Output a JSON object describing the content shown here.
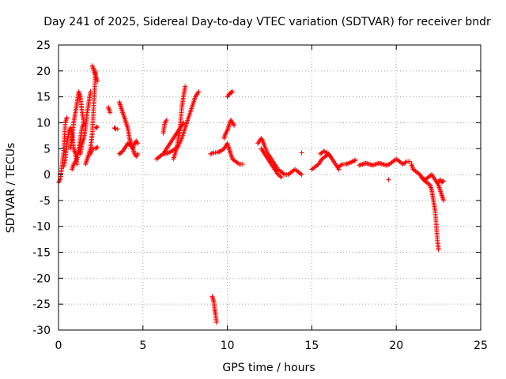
{
  "chart_data": {
    "type": "scatter",
    "title": "Day 241 of 2025, Sidereal Day-to-day VTEC variation (SDTVAR) for receiver bndr",
    "xlabel": "GPS time / hours",
    "ylabel": "SDTVAR / TECUs",
    "xlim": [
      0,
      25
    ],
    "ylim": [
      -30,
      25
    ],
    "xticks": [
      0,
      5,
      10,
      15,
      20,
      25
    ],
    "yticks": [
      -30,
      -25,
      -20,
      -15,
      -10,
      -5,
      0,
      5,
      10,
      15,
      20,
      25
    ],
    "xtick_labels": [
      "0",
      "5",
      "10",
      "15",
      "20",
      "25"
    ],
    "ytick_labels": [
      "-30",
      "-25",
      "-20",
      "-15",
      "-10",
      "-5",
      "0",
      "5",
      "10",
      "15",
      "20",
      "25"
    ],
    "grid": true,
    "marker": "+",
    "marker_color": "#ff0000",
    "series": [
      {
        "name": "SDTVAR",
        "segments": [
          [
            [
              0.0,
              -1.5
            ],
            [
              0.1,
              -1
            ],
            [
              0.2,
              1.5
            ],
            [
              0.3,
              4
            ],
            [
              0.35,
              7
            ],
            [
              0.4,
              10
            ],
            [
              0.5,
              11
            ]
          ],
          [
            [
              0.3,
              1.5
            ],
            [
              0.4,
              3
            ],
            [
              0.5,
              6
            ],
            [
              0.6,
              8
            ],
            [
              0.7,
              9
            ],
            [
              0.8,
              8
            ],
            [
              0.9,
              5
            ],
            [
              1.0,
              4
            ],
            [
              1.1,
              2
            ]
          ],
          [
            [
              0.7,
              5
            ],
            [
              0.8,
              7
            ],
            [
              0.9,
              10
            ],
            [
              1.0,
              12
            ],
            [
              1.1,
              14
            ],
            [
              1.2,
              16
            ],
            [
              1.3,
              15
            ],
            [
              1.4,
              12
            ],
            [
              1.5,
              10
            ]
          ],
          [
            [
              0.8,
              1
            ],
            [
              0.9,
              2
            ],
            [
              1.0,
              2.5
            ],
            [
              1.1,
              3
            ],
            [
              1.2,
              5
            ],
            [
              1.3,
              7
            ],
            [
              1.4,
              9
            ],
            [
              1.5,
              10
            ]
          ],
          [
            [
              1.3,
              4
            ],
            [
              1.4,
              6
            ],
            [
              1.5,
              7
            ],
            [
              1.6,
              9
            ],
            [
              1.7,
              12
            ],
            [
              1.8,
              14
            ],
            [
              1.9,
              16
            ]
          ],
          [
            [
              1.6,
              2
            ],
            [
              1.7,
              3
            ],
            [
              1.8,
              4
            ],
            [
              1.9,
              5
            ],
            [
              2.0,
              8
            ],
            [
              2.05,
              11
            ],
            [
              2.1,
              14
            ],
            [
              2.15,
              17
            ],
            [
              2.2,
              20
            ]
          ],
          [
            [
              2.0,
              21
            ],
            [
              2.1,
              20
            ],
            [
              2.2,
              19
            ],
            [
              2.3,
              18
            ]
          ],
          [
            [
              1.9,
              4
            ],
            [
              2.0,
              5
            ],
            [
              2.1,
              5
            ],
            [
              2.2,
              5
            ],
            [
              2.3,
              5.3
            ]
          ],
          [
            [
              2.2,
              9
            ],
            [
              2.3,
              9.2
            ]
          ],
          [
            [
              2.95,
              13
            ],
            [
              3.0,
              12.5
            ],
            [
              3.05,
              12
            ]
          ],
          [
            [
              3.3,
              9
            ],
            [
              3.4,
              8.8
            ],
            [
              3.5,
              8.8
            ]
          ],
          [
            [
              3.6,
              14
            ],
            [
              3.7,
              13
            ],
            [
              3.8,
              12
            ],
            [
              3.9,
              11
            ],
            [
              4.0,
              10
            ],
            [
              4.1,
              9
            ],
            [
              4.2,
              7
            ],
            [
              4.3,
              6
            ],
            [
              4.4,
              5
            ],
            [
              4.5,
              4
            ],
            [
              4.6,
              3.5
            ],
            [
              4.7,
              4
            ]
          ],
          [
            [
              3.6,
              4
            ],
            [
              3.7,
              4.2
            ],
            [
              3.8,
              4.5
            ],
            [
              3.9,
              5
            ],
            [
              4.0,
              5.5
            ],
            [
              4.1,
              6
            ],
            [
              4.2,
              5.8
            ],
            [
              4.3,
              5.5
            ],
            [
              4.4,
              5
            ],
            [
              4.5,
              6
            ],
            [
              4.6,
              6.5
            ],
            [
              4.7,
              6
            ]
          ],
          [
            [
              5.8,
              3
            ],
            [
              6.0,
              3.5
            ],
            [
              6.2,
              4
            ],
            [
              6.4,
              5
            ],
            [
              6.6,
              6
            ],
            [
              6.8,
              7
            ],
            [
              7.0,
              8
            ],
            [
              7.2,
              9
            ],
            [
              7.4,
              10
            ]
          ],
          [
            [
              6.3,
              4
            ],
            [
              6.5,
              4.2
            ],
            [
              6.7,
              4.5
            ],
            [
              6.9,
              5
            ],
            [
              7.1,
              5.5
            ],
            [
              7.3,
              7
            ],
            [
              7.5,
              9
            ],
            [
              7.7,
              11
            ],
            [
              7.9,
              13
            ],
            [
              8.1,
              15
            ],
            [
              8.3,
              16
            ]
          ],
          [
            [
              6.2,
              8
            ],
            [
              6.3,
              10
            ],
            [
              6.4,
              10.5
            ]
          ],
          [
            [
              6.8,
              3
            ],
            [
              7.0,
              5
            ],
            [
              7.1,
              7
            ],
            [
              7.2,
              9
            ],
            [
              7.25,
              11
            ],
            [
              7.3,
              13
            ],
            [
              7.4,
              15
            ],
            [
              7.5,
              17
            ]
          ],
          [
            [
              9.1,
              -23.5
            ],
            [
              9.2,
              -24.5
            ],
            [
              9.25,
              -26
            ],
            [
              9.3,
              -27
            ],
            [
              9.35,
              -28.5
            ]
          ],
          [
            [
              9.0,
              4
            ],
            [
              9.2,
              4.2
            ],
            [
              9.4,
              4.3
            ],
            [
              9.6,
              4.5
            ],
            [
              9.8,
              5
            ],
            [
              10.0,
              6
            ],
            [
              10.1,
              5
            ],
            [
              10.2,
              4
            ],
            [
              10.3,
              3
            ],
            [
              10.5,
              2.5
            ],
            [
              10.7,
              2
            ],
            [
              10.9,
              2
            ]
          ],
          [
            [
              9.8,
              7
            ],
            [
              9.9,
              8
            ],
            [
              10.0,
              8.5
            ],
            [
              10.1,
              9.5
            ],
            [
              10.2,
              10.5
            ],
            [
              10.3,
              10
            ],
            [
              10.4,
              9.5
            ]
          ],
          [
            [
              10.0,
              15
            ],
            [
              10.1,
              15.5
            ],
            [
              10.2,
              15.8
            ],
            [
              10.3,
              16
            ]
          ],
          [
            [
              11.8,
              6
            ],
            [
              11.9,
              6.5
            ],
            [
              12.0,
              7
            ],
            [
              12.1,
              6.5
            ],
            [
              12.2,
              5.5
            ],
            [
              12.4,
              4
            ],
            [
              12.6,
              3
            ],
            [
              12.8,
              2
            ],
            [
              13.0,
              1
            ],
            [
              13.2,
              0.5
            ],
            [
              13.4,
              0
            ],
            [
              13.6,
              0
            ],
            [
              13.8,
              0.5
            ],
            [
              14.0,
              1
            ],
            [
              14.2,
              0.5
            ],
            [
              14.4,
              0
            ]
          ],
          [
            [
              12.0,
              5
            ],
            [
              12.2,
              4
            ],
            [
              12.4,
              3
            ],
            [
              12.6,
              2
            ],
            [
              12.8,
              1
            ],
            [
              13.0,
              0
            ],
            [
              13.2,
              -0.5
            ]
          ],
          [
            [
              14.4,
              4.2
            ]
          ],
          [
            [
              15.0,
              1
            ],
            [
              15.2,
              1.5
            ],
            [
              15.4,
              2
            ],
            [
              15.6,
              3
            ],
            [
              15.8,
              3.5
            ],
            [
              16.0,
              4
            ],
            [
              16.2,
              3
            ],
            [
              16.4,
              2
            ],
            [
              16.6,
              1
            ]
          ],
          [
            [
              15.5,
              4
            ],
            [
              15.7,
              4.5
            ],
            [
              15.9,
              4.2
            ],
            [
              16.1,
              3.5
            ]
          ],
          [
            [
              16.6,
              1.5
            ],
            [
              16.8,
              2
            ],
            [
              17.0,
              2
            ],
            [
              17.2,
              2.2
            ],
            [
              17.4,
              2.5
            ],
            [
              17.6,
              2.8
            ]
          ],
          [
            [
              17.8,
              1.8
            ],
            [
              18.0,
              2
            ],
            [
              18.2,
              2.2
            ],
            [
              18.4,
              2
            ],
            [
              18.6,
              1.8
            ],
            [
              18.8,
              2
            ],
            [
              19.0,
              2.2
            ],
            [
              19.2,
              2
            ],
            [
              19.4,
              1.8
            ],
            [
              19.6,
              2
            ],
            [
              19.8,
              2.5
            ],
            [
              20.0,
              3
            ],
            [
              20.2,
              2.5
            ],
            [
              20.4,
              2
            ],
            [
              20.6,
              2.5
            ],
            [
              20.8,
              2.5
            ]
          ],
          [
            [
              19.55,
              -1
            ]
          ],
          [
            [
              20.9,
              2
            ],
            [
              21.0,
              1
            ],
            [
              21.2,
              0.5
            ],
            [
              21.4,
              0
            ],
            [
              21.6,
              -1
            ],
            [
              21.8,
              -1.5
            ],
            [
              22.0,
              -2
            ],
            [
              22.1,
              -3
            ],
            [
              22.2,
              -5
            ],
            [
              22.3,
              -7
            ],
            [
              22.35,
              -9
            ],
            [
              22.4,
              -11
            ],
            [
              22.45,
              -13
            ],
            [
              22.5,
              -14.5
            ]
          ],
          [
            [
              21.5,
              -0.5
            ],
            [
              21.7,
              -1
            ],
            [
              21.9,
              -0.5
            ],
            [
              22.1,
              0
            ],
            [
              22.3,
              -1
            ],
            [
              22.5,
              -2
            ],
            [
              22.6,
              -3
            ],
            [
              22.7,
              -4
            ],
            [
              22.8,
              -5
            ]
          ],
          [
            [
              22.5,
              -1.5
            ],
            [
              22.6,
              -1
            ],
            [
              22.7,
              -1.5
            ],
            [
              22.8,
              -1.2
            ]
          ]
        ]
      }
    ]
  }
}
